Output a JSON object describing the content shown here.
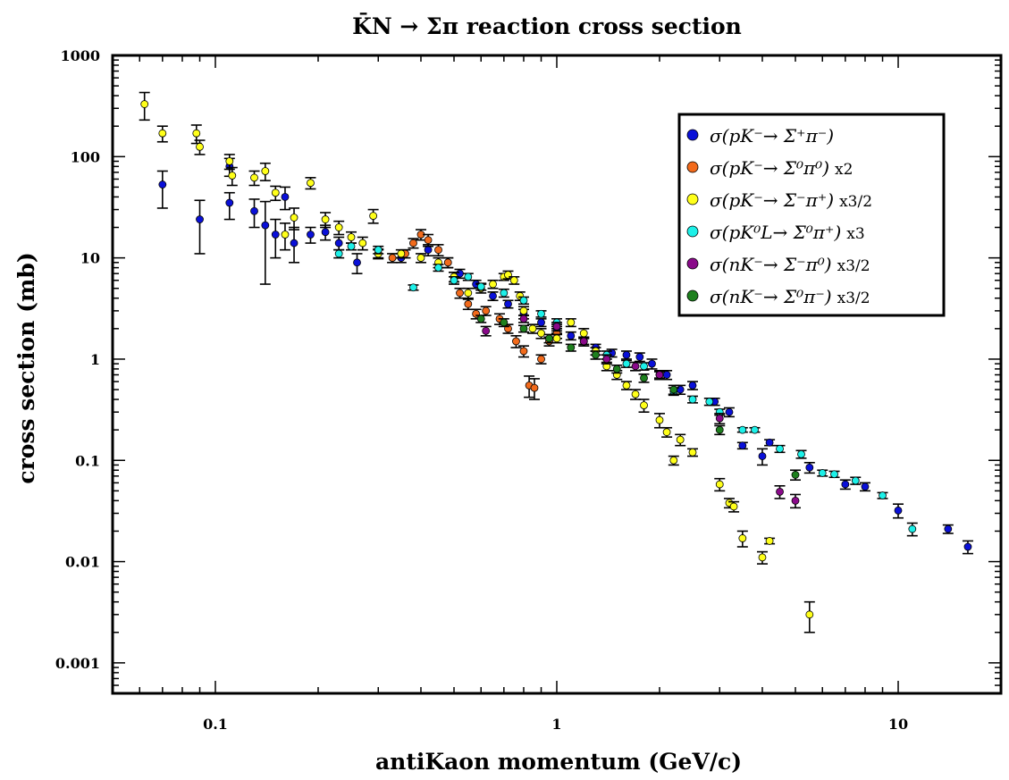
{
  "chart_data": {
    "type": "scatter",
    "title": "K̄N → Σπ reaction cross section",
    "xlabel": "antiKaon momentum (GeV/c)",
    "ylabel": "cross section (mb)",
    "xscale": "log",
    "yscale": "log",
    "xlim": [
      0.05,
      20
    ],
    "ylim": [
      0.0005,
      1000
    ],
    "xticks": [
      {
        "value": 0.1,
        "label": "0.1"
      },
      {
        "value": 1,
        "label": "1"
      },
      {
        "value": 10,
        "label": "10"
      }
    ],
    "yticks": [
      {
        "value": 0.001,
        "label": "0.001"
      },
      {
        "value": 0.01,
        "label": "0.01"
      },
      {
        "value": 0.1,
        "label": "0.1"
      },
      {
        "value": 1,
        "label": "1"
      },
      {
        "value": 10,
        "label": "10"
      },
      {
        "value": 100,
        "label": "100"
      },
      {
        "value": 1000,
        "label": "1000"
      }
    ],
    "legend_position": "top-right",
    "series": [
      {
        "name": "σ(pK⁻→ Σ⁺π⁻)",
        "scale_note": "",
        "color": "#0a10d8",
        "points": [
          [
            0.07,
            53,
            31,
            72
          ],
          [
            0.09,
            24,
            11,
            37
          ],
          [
            0.11,
            35,
            24,
            44
          ],
          [
            0.11,
            80,
            64,
            96
          ],
          [
            0.13,
            29,
            20,
            38
          ],
          [
            0.14,
            21,
            5.5,
            36
          ],
          [
            0.15,
            17,
            10,
            24
          ],
          [
            0.16,
            40,
            30,
            50
          ],
          [
            0.17,
            14,
            9,
            20
          ],
          [
            0.19,
            17,
            14,
            20
          ],
          [
            0.21,
            18,
            15,
            21
          ],
          [
            0.23,
            14,
            12,
            16
          ],
          [
            0.26,
            9,
            7,
            11
          ],
          [
            0.3,
            11,
            10,
            12
          ],
          [
            0.35,
            10,
            9,
            11
          ],
          [
            0.42,
            12,
            10.5,
            13.5
          ],
          [
            0.48,
            9,
            8,
            10
          ],
          [
            0.52,
            7,
            6.3,
            7.7
          ],
          [
            0.58,
            5.5,
            5,
            6
          ],
          [
            0.65,
            4.2,
            3.8,
            4.6
          ],
          [
            0.72,
            3.5,
            3.2,
            3.8
          ],
          [
            0.8,
            2.8,
            2.5,
            3.1
          ],
          [
            0.9,
            2.3,
            2.1,
            2.5
          ],
          [
            1.0,
            2.0,
            1.8,
            2.2
          ],
          [
            1.1,
            1.7,
            1.55,
            1.85
          ],
          [
            1.2,
            1.5,
            1.35,
            1.65
          ],
          [
            1.3,
            1.3,
            1.2,
            1.4
          ],
          [
            1.45,
            1.15,
            1.05,
            1.25
          ],
          [
            1.6,
            1.1,
            1.0,
            1.2
          ],
          [
            1.75,
            1.05,
            0.95,
            1.15
          ],
          [
            1.9,
            0.9,
            0.8,
            1.0
          ],
          [
            2.1,
            0.7,
            0.63,
            0.77
          ],
          [
            2.3,
            0.5,
            0.45,
            0.55
          ],
          [
            2.5,
            0.55,
            0.5,
            0.6
          ],
          [
            2.9,
            0.38,
            0.35,
            0.41
          ],
          [
            3.2,
            0.3,
            0.27,
            0.33
          ],
          [
            3.5,
            0.14,
            0.13,
            0.15
          ],
          [
            4.0,
            0.11,
            0.09,
            0.13
          ],
          [
            4.2,
            0.15,
            0.14,
            0.16
          ],
          [
            5.5,
            0.085,
            0.075,
            0.095
          ],
          [
            7.0,
            0.058,
            0.052,
            0.064
          ],
          [
            8.0,
            0.055,
            0.05,
            0.06
          ],
          [
            10.0,
            0.032,
            0.027,
            0.037
          ],
          [
            14.0,
            0.021,
            0.019,
            0.023
          ],
          [
            16.0,
            0.014,
            0.012,
            0.016
          ]
        ]
      },
      {
        "name": "σ(pK⁻→ Σ⁰π⁰)",
        "scale_note": "x2",
        "color": "#f26a1b",
        "points": [
          [
            0.33,
            10,
            9,
            11
          ],
          [
            0.36,
            11,
            10,
            12
          ],
          [
            0.38,
            14,
            12.5,
            15.5
          ],
          [
            0.4,
            17,
            15,
            19
          ],
          [
            0.42,
            15,
            13,
            17
          ],
          [
            0.45,
            12,
            10.5,
            13.5
          ],
          [
            0.48,
            9,
            8,
            10
          ],
          [
            0.5,
            6.5,
            5.8,
            7.2
          ],
          [
            0.52,
            4.5,
            4,
            5
          ],
          [
            0.55,
            3.5,
            3.1,
            3.9
          ],
          [
            0.58,
            2.8,
            2.5,
            3.1
          ],
          [
            0.62,
            3.0,
            2.7,
            3.3
          ],
          [
            0.68,
            2.5,
            2.2,
            2.8
          ],
          [
            0.72,
            2.0,
            1.8,
            2.2
          ],
          [
            0.76,
            1.5,
            1.3,
            1.7
          ],
          [
            0.8,
            1.2,
            1.05,
            1.35
          ],
          [
            0.83,
            0.55,
            0.42,
            0.68
          ],
          [
            0.86,
            0.52,
            0.4,
            0.64
          ],
          [
            0.9,
            1.0,
            0.9,
            1.1
          ],
          [
            0.95,
            1.5,
            1.35,
            1.65
          ],
          [
            1.0,
            1.8,
            1.6,
            2.0
          ]
        ]
      },
      {
        "name": "σ(pK⁻→ Σ⁻π⁺)",
        "scale_note": "x3/2",
        "color": "#ffff1a",
        "points": [
          [
            0.062,
            330,
            230,
            430
          ],
          [
            0.07,
            170,
            140,
            200
          ],
          [
            0.088,
            170,
            135,
            205
          ],
          [
            0.09,
            125,
            105,
            145
          ],
          [
            0.11,
            90,
            75,
            105
          ],
          [
            0.112,
            65,
            52,
            78
          ],
          [
            0.13,
            62,
            52,
            72
          ],
          [
            0.14,
            72,
            58,
            86
          ],
          [
            0.15,
            44,
            37,
            51
          ],
          [
            0.16,
            17,
            12,
            22
          ],
          [
            0.17,
            25,
            19,
            31
          ],
          [
            0.19,
            55,
            48,
            62
          ],
          [
            0.21,
            24,
            20,
            28
          ],
          [
            0.23,
            20,
            17,
            23
          ],
          [
            0.25,
            16,
            14,
            18
          ],
          [
            0.27,
            14,
            12,
            16
          ],
          [
            0.29,
            26,
            22,
            30
          ],
          [
            0.3,
            11,
            9.8,
            12.2
          ],
          [
            0.35,
            11,
            10,
            12
          ],
          [
            0.4,
            10,
            9,
            11
          ],
          [
            0.45,
            9,
            8,
            10
          ],
          [
            0.5,
            6.5,
            5.8,
            7.2
          ],
          [
            0.55,
            4.5,
            4,
            5
          ],
          [
            0.6,
            5.0,
            4.5,
            5.5
          ],
          [
            0.65,
            5.5,
            5,
            6
          ],
          [
            0.7,
            6.5,
            6,
            7
          ],
          [
            0.72,
            6.8,
            6.2,
            7.4
          ],
          [
            0.75,
            6,
            5.5,
            6.5
          ],
          [
            0.78,
            4.2,
            3.8,
            4.6
          ],
          [
            0.8,
            3.0,
            2.7,
            3.3
          ],
          [
            0.85,
            2.0,
            1.8,
            2.2
          ],
          [
            0.9,
            1.8,
            1.6,
            2.0
          ],
          [
            1.0,
            1.6,
            1.45,
            1.75
          ],
          [
            1.1,
            2.3,
            2.1,
            2.5
          ],
          [
            1.2,
            1.8,
            1.6,
            2.0
          ],
          [
            1.3,
            1.2,
            1.1,
            1.3
          ],
          [
            1.4,
            0.85,
            0.77,
            0.93
          ],
          [
            1.5,
            0.7,
            0.63,
            0.77
          ],
          [
            1.6,
            0.55,
            0.5,
            0.6
          ],
          [
            1.7,
            0.45,
            0.4,
            0.5
          ],
          [
            1.8,
            0.35,
            0.3,
            0.4
          ],
          [
            2.0,
            0.25,
            0.21,
            0.29
          ],
          [
            2.1,
            0.19,
            0.17,
            0.21
          ],
          [
            2.2,
            0.1,
            0.09,
            0.11
          ],
          [
            2.3,
            0.16,
            0.14,
            0.18
          ],
          [
            2.5,
            0.12,
            0.11,
            0.13
          ],
          [
            3.0,
            0.058,
            0.05,
            0.066
          ],
          [
            3.2,
            0.038,
            0.034,
            0.042
          ],
          [
            3.3,
            0.035,
            0.031,
            0.039
          ],
          [
            3.5,
            0.017,
            0.014,
            0.02
          ],
          [
            4.0,
            0.011,
            0.0095,
            0.0125
          ],
          [
            4.2,
            0.016,
            0.015,
            0.017
          ],
          [
            5.5,
            0.003,
            0.002,
            0.004
          ]
        ]
      },
      {
        "name": "σ(pK⁰L→ Σ⁰π⁺)",
        "scale_note": "x3",
        "color": "#1df0e8",
        "points": [
          [
            0.23,
            11,
            10,
            12
          ],
          [
            0.25,
            13,
            12,
            14
          ],
          [
            0.3,
            12,
            11,
            13
          ],
          [
            0.38,
            5.1,
            4.8,
            5.4
          ],
          [
            0.45,
            8,
            7.4,
            8.6
          ],
          [
            0.5,
            6,
            5.5,
            6.5
          ],
          [
            0.55,
            6.5,
            6,
            7
          ],
          [
            0.6,
            5.2,
            4.8,
            5.6
          ],
          [
            0.7,
            4.5,
            4.1,
            4.9
          ],
          [
            0.8,
            3.8,
            3.5,
            4.1
          ],
          [
            0.9,
            2.8,
            2.6,
            3.0
          ],
          [
            1.0,
            2.3,
            2.1,
            2.5
          ],
          [
            1.2,
            1.5,
            1.4,
            1.6
          ],
          [
            1.4,
            1.1,
            1.0,
            1.2
          ],
          [
            1.6,
            0.9,
            0.83,
            0.97
          ],
          [
            1.8,
            0.85,
            0.78,
            0.92
          ],
          [
            2.0,
            0.7,
            0.65,
            0.75
          ],
          [
            2.2,
            0.48,
            0.44,
            0.52
          ],
          [
            2.5,
            0.4,
            0.37,
            0.43
          ],
          [
            2.8,
            0.38,
            0.35,
            0.41
          ],
          [
            3.0,
            0.3,
            0.28,
            0.32
          ],
          [
            3.5,
            0.2,
            0.19,
            0.21
          ],
          [
            3.8,
            0.2,
            0.19,
            0.21
          ],
          [
            4.5,
            0.13,
            0.12,
            0.14
          ],
          [
            5.2,
            0.115,
            0.105,
            0.125
          ],
          [
            6.0,
            0.075,
            0.07,
            0.08
          ],
          [
            6.5,
            0.073,
            0.068,
            0.078
          ],
          [
            7.5,
            0.063,
            0.058,
            0.068
          ],
          [
            9.0,
            0.045,
            0.042,
            0.048
          ],
          [
            11.0,
            0.021,
            0.018,
            0.024
          ]
        ]
      },
      {
        "name": "σ(nK⁻→ Σ⁻π⁰)",
        "scale_note": "x3/2",
        "color": "#8a0a8a",
        "points": [
          [
            0.62,
            1.9,
            1.7,
            2.1
          ],
          [
            0.8,
            2.5,
            2.3,
            2.7
          ],
          [
            1.0,
            2.1,
            1.9,
            2.3
          ],
          [
            1.2,
            1.5,
            1.35,
            1.65
          ],
          [
            1.4,
            1.0,
            0.9,
            1.1
          ],
          [
            1.7,
            0.85,
            0.77,
            0.93
          ],
          [
            2.0,
            0.7,
            0.63,
            0.77
          ],
          [
            3.0,
            0.26,
            0.23,
            0.29
          ],
          [
            4.5,
            0.049,
            0.042,
            0.056
          ],
          [
            5.0,
            0.04,
            0.034,
            0.046
          ]
        ]
      },
      {
        "name": "σ(nK⁻→ Σ⁰π⁻)",
        "scale_note": "x3/2",
        "color": "#1e801e",
        "points": [
          [
            0.6,
            2.5,
            2.3,
            2.7
          ],
          [
            0.7,
            2.3,
            2.1,
            2.5
          ],
          [
            0.8,
            2.0,
            1.85,
            2.15
          ],
          [
            0.95,
            1.6,
            1.45,
            1.75
          ],
          [
            1.1,
            1.3,
            1.2,
            1.4
          ],
          [
            1.3,
            1.1,
            1.0,
            1.2
          ],
          [
            1.5,
            0.8,
            0.73,
            0.87
          ],
          [
            1.8,
            0.65,
            0.59,
            0.71
          ],
          [
            2.2,
            0.5,
            0.45,
            0.55
          ],
          [
            3.0,
            0.2,
            0.18,
            0.22
          ],
          [
            5.0,
            0.072,
            0.064,
            0.08
          ]
        ]
      }
    ]
  }
}
